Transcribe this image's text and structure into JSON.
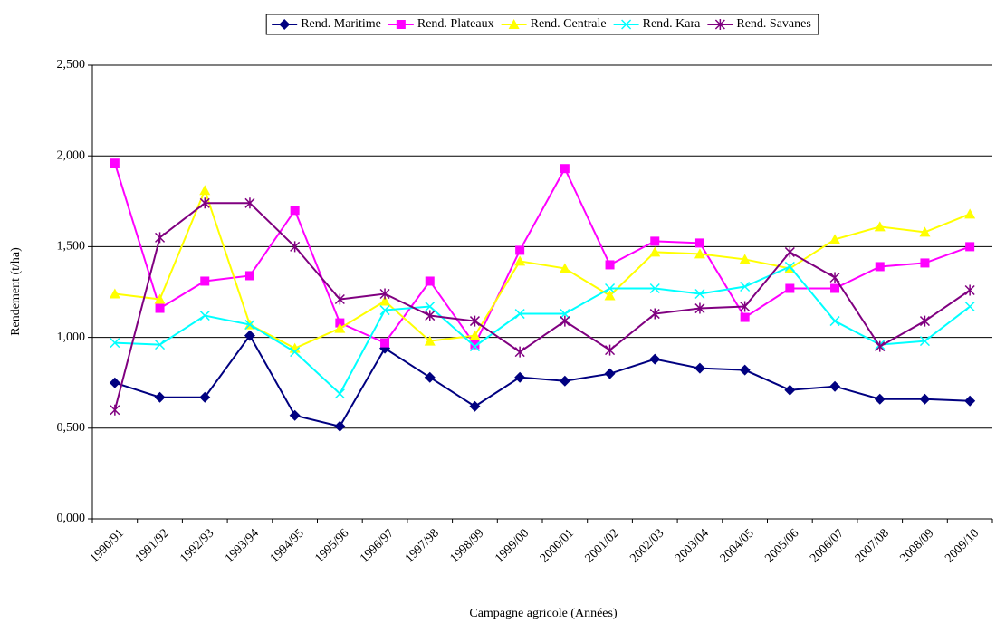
{
  "chart_data": {
    "type": "line",
    "x_label": "Campagne agricole (Années)",
    "y_label": "Rendement (t/ha)",
    "categories": [
      "1990/91",
      "1991/92",
      "1992/93",
      "1993/94",
      "1994/95",
      "1995/96",
      "1996/97",
      "1997/98",
      "1998/99",
      "1999/00",
      "2000/01",
      "2001/02",
      "2002/03",
      "2003/04",
      "2004/05",
      "2005/06",
      "2006/07",
      "2007/08",
      "2008/09",
      "2009/10"
    ],
    "series": [
      {
        "name": "Rend. Maritime",
        "color": "#000080",
        "marker": "diamond",
        "values": [
          0.75,
          0.67,
          0.67,
          1.01,
          0.57,
          0.51,
          0.94,
          0.78,
          0.62,
          0.78,
          0.76,
          0.8,
          0.88,
          0.83,
          0.82,
          0.71,
          0.73,
          0.66,
          0.66,
          0.65
        ]
      },
      {
        "name": "Rend. Plateaux",
        "color": "#ff00ff",
        "marker": "square",
        "values": [
          1.96,
          1.16,
          1.31,
          1.34,
          1.7,
          1.08,
          0.97,
          1.31,
          0.96,
          1.48,
          1.93,
          1.4,
          1.53,
          1.52,
          1.11,
          1.27,
          1.27,
          1.39,
          1.41,
          1.5
        ]
      },
      {
        "name": "Rend. Centrale",
        "color": "#ffff00",
        "marker": "triangle",
        "values": [
          1.24,
          1.21,
          1.81,
          1.07,
          0.94,
          1.05,
          1.2,
          0.98,
          1.01,
          1.42,
          1.38,
          1.23,
          1.47,
          1.46,
          1.43,
          1.38,
          1.54,
          1.61,
          1.58,
          1.68
        ]
      },
      {
        "name": "Rend. Kara",
        "color": "#00ffff",
        "marker": "x",
        "values": [
          0.97,
          0.96,
          1.12,
          1.07,
          0.92,
          0.69,
          1.15,
          1.17,
          0.95,
          1.13,
          1.13,
          1.27,
          1.27,
          1.24,
          1.28,
          1.39,
          1.09,
          0.96,
          0.98,
          1.17
        ]
      },
      {
        "name": "Rend. Savanes",
        "color": "#800080",
        "marker": "star",
        "values": [
          0.6,
          1.55,
          1.74,
          1.74,
          1.5,
          1.21,
          1.24,
          1.12,
          1.09,
          0.92,
          1.09,
          0.93,
          1.13,
          1.16,
          1.17,
          1.47,
          1.33,
          0.95,
          1.09,
          1.26
        ]
      }
    ],
    "ylim": [
      0,
      2.5
    ],
    "yticks": [
      {
        "value": 0,
        "label": "0,000"
      },
      {
        "value": 0.5,
        "label": "0,500"
      },
      {
        "value": 1,
        "label": "1,000"
      },
      {
        "value": 1.5,
        "label": "1,500"
      },
      {
        "value": 2,
        "label": "2,000"
      },
      {
        "value": 2.5,
        "label": "2,500"
      }
    ],
    "grid": true,
    "legend": "top"
  }
}
